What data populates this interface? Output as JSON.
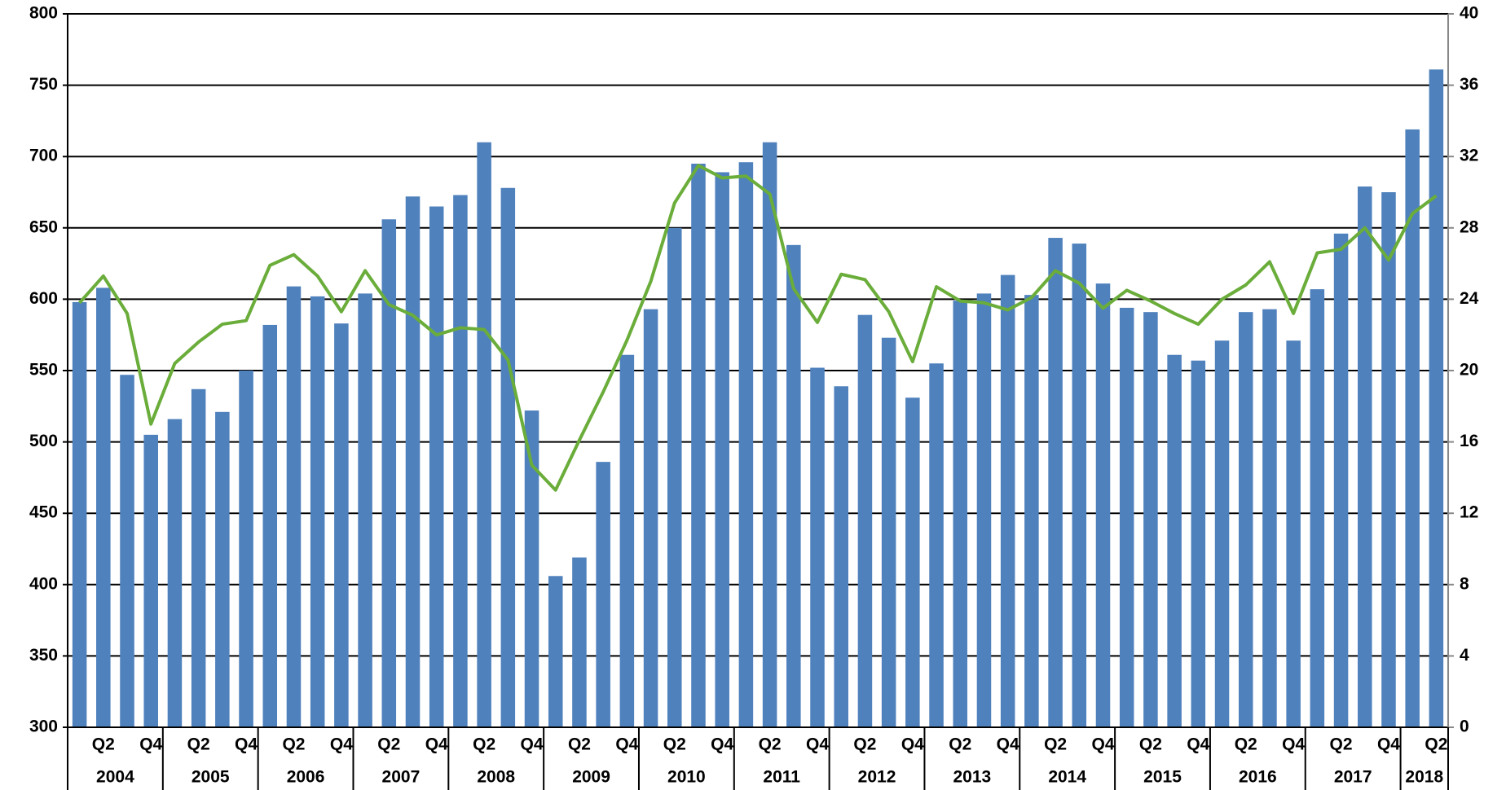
{
  "chart_data": {
    "type": "bar",
    "categories": [
      null,
      "Q2",
      null,
      "Q4",
      null,
      "Q2",
      null,
      "Q4",
      null,
      "Q2",
      null,
      "Q4",
      null,
      "Q2",
      null,
      "Q4",
      null,
      "Q2",
      null,
      "Q4",
      null,
      "Q2",
      null,
      "Q4",
      null,
      "Q2",
      null,
      "Q4",
      null,
      "Q2",
      null,
      "Q4",
      null,
      "Q2",
      null,
      "Q4",
      null,
      "Q2",
      null,
      "Q4",
      null,
      "Q2",
      null,
      "Q4",
      null,
      "Q2",
      null,
      "Q4",
      null,
      "Q2",
      null,
      "Q4",
      null,
      "Q2",
      null,
      "Q4",
      null,
      "Q2"
    ],
    "years": [
      "2004",
      "2005",
      "2006",
      "2007",
      "2008",
      "2009",
      "2010",
      "2011",
      "2012",
      "2013",
      "2014",
      "2015",
      "2016",
      "2017",
      "2018"
    ],
    "series": [
      {
        "type": "bar",
        "color": "#4f81bd",
        "values": [
          598,
          608,
          547,
          505,
          516,
          537,
          521,
          550,
          582,
          609,
          602,
          583,
          604,
          656,
          672,
          665,
          673,
          710,
          678,
          522,
          406,
          419,
          486,
          561,
          593,
          650,
          695,
          689,
          696,
          710,
          638,
          552,
          539,
          589,
          573,
          531,
          555,
          599,
          604,
          617,
          603,
          643,
          639,
          611,
          594,
          591,
          561,
          557,
          571,
          591,
          593,
          571,
          607,
          646,
          679,
          675,
          719,
          761
        ]
      },
      {
        "type": "line",
        "axis": "y2",
        "color": "#6aad3a",
        "values": [
          23.8,
          25.3,
          23.2,
          17.0,
          20.4,
          21.6,
          22.6,
          22.8,
          25.9,
          26.5,
          25.3,
          23.3,
          25.6,
          23.7,
          23.1,
          22.0,
          22.4,
          22.3,
          20.6,
          14.7,
          13.3,
          16.1,
          18.8,
          21.7,
          25.0,
          29.4,
          31.5,
          30.8,
          30.9,
          29.9,
          24.6,
          22.7,
          25.4,
          25.1,
          23.3,
          20.5,
          24.7,
          23.9,
          23.8,
          23.4,
          24.1,
          25.6,
          24.9,
          23.5,
          24.5,
          23.9,
          23.2,
          22.6,
          24.0,
          24.8,
          26.1,
          23.2,
          26.6,
          26.8,
          28.0,
          26.2,
          28.8,
          29.8
        ]
      }
    ],
    "ylim": [
      300,
      800
    ],
    "yticks": [
      300,
      350,
      400,
      450,
      500,
      550,
      600,
      650,
      700,
      750,
      800
    ],
    "y2lim": [
      0,
      40
    ],
    "y2ticks": [
      0,
      4,
      8,
      12,
      16,
      20,
      24,
      28,
      32,
      36,
      40
    ],
    "grid": true
  }
}
